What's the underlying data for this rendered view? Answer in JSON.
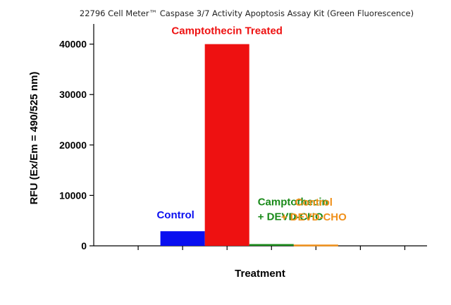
{
  "chart_data": {
    "type": "bar",
    "title": "22796 Cell Meter™ Caspase 3/7 Activity Apoptosis Assay Kit (Green Fluorescence)",
    "xlabel": "Treatment",
    "ylabel": "RFU (Ex/Em = 490/525 nm)",
    "ylim": [
      0,
      44000
    ],
    "yticks": [
      0,
      10000,
      20000,
      30000,
      40000
    ],
    "ytick_labels": [
      "0",
      "10000",
      "20000",
      "30000",
      "40000"
    ],
    "xlim": [
      0,
      7.5
    ],
    "grid": false,
    "bars": [
      {
        "name": "control",
        "label_lines": [
          "Control"
        ],
        "x_start": 1.5,
        "x_end": 2.5,
        "value": 2900,
        "color": "#0a0ff0",
        "label_align": "center"
      },
      {
        "name": "camptothecin-treated",
        "label_lines": [
          "Camptothecin Treated"
        ],
        "x_start": 2.5,
        "x_end": 3.5,
        "value": 40000,
        "color": "#ee1111",
        "label_align": "center"
      },
      {
        "name": "camptothecin-devd-cho",
        "label_lines": [
          "Camptothecin",
          "+ DEVD-CHO"
        ],
        "x_start": 3.5,
        "x_end": 4.5,
        "value": 350,
        "color": "#1a8a1a",
        "label_align": "left"
      },
      {
        "name": "control-devd-cho",
        "label_lines": [
          "Control",
          "+ DEVD-CHO"
        ],
        "x_start": 4.5,
        "x_end": 5.5,
        "value": 250,
        "color": "#f0901a",
        "label_align": "center"
      }
    ]
  }
}
